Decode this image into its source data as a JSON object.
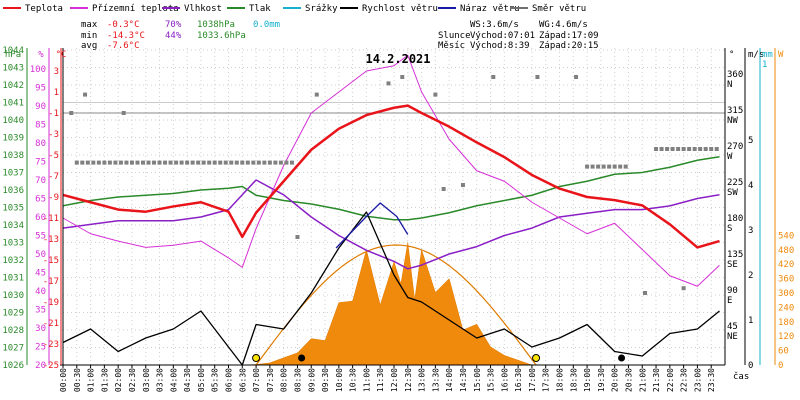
{
  "chart_data": {
    "type": "line",
    "title": "14.2.2021",
    "xlabel": "čas",
    "legend": [
      {
        "name": "Teplota",
        "color": "#e8141a"
      },
      {
        "name": "Přízemní teplota",
        "color": "#d62fd6"
      },
      {
        "name": "Vlhkost",
        "color": "#8a1fc6"
      },
      {
        "name": "Tlak",
        "color": "#2a8a2a"
      },
      {
        "name": "Srážky",
        "color": "#16b0cc"
      },
      {
        "name": "Rychlost větru",
        "color": "#000000"
      },
      {
        "name": "Náraz větru",
        "color": "#1a1aa6"
      },
      {
        "name": "Směr větru",
        "color": "#707070"
      }
    ],
    "stats": {
      "max_label": "max",
      "max_temp": "-0.3°C",
      "max_hum": "70%",
      "max_press": "1038hPa",
      "rain": "0.0mm",
      "min_label": "min",
      "min_temp": "-14.3°C",
      "min_hum": "44%",
      "min_press": "1033.6hPa",
      "avg_label": "avg",
      "avg_temp": "-7.6°C"
    },
    "wind_info": {
      "ws": "WS:3.6m/s",
      "wg": "WG:4.6m/s"
    },
    "sun": {
      "label": "Slunce",
      "rise": "Východ:07:01",
      "set": "Západ:17:09"
    },
    "moon": {
      "label": "Měsíc",
      "rise": "Východ:8:39",
      "set": "Západ:20:15"
    },
    "axes": {
      "hpa_title": "hPa",
      "pct_title": "%",
      "c_title": "°C",
      "deg_title": "°",
      "ms_title": "m/s",
      "mm_title": "mm",
      "w_title": "W",
      "ms_one": "1",
      "hpa_ticks": [
        "1044",
        "1043",
        "1042",
        "1041",
        "1040",
        "1039",
        "1038",
        "1037",
        "1036",
        "1035",
        "1034",
        "1033",
        "1032",
        "1031",
        "1030",
        "1029",
        "1028",
        "1027",
        "1026"
      ],
      "pct_ticks": [
        "100",
        "95",
        "90",
        "85",
        "80",
        "75",
        "70",
        "65",
        "60",
        "55",
        "50",
        "45",
        "40",
        "35",
        "30",
        "25",
        "20"
      ],
      "c_ticks": [
        "3",
        "1",
        "-1",
        "-3",
        "-5",
        "-7",
        "-9",
        "-11",
        "-13",
        "-15",
        "-17",
        "-19",
        "-21",
        "-23",
        "-25"
      ],
      "deg_ticks": [
        {
          "deg": "360",
          "dir": "N"
        },
        {
          "deg": "315",
          "dir": "NW"
        },
        {
          "deg": "270",
          "dir": "W"
        },
        {
          "deg": "225",
          "dir": "SW"
        },
        {
          "deg": "180",
          "dir": "S"
        },
        {
          "deg": "135",
          "dir": "SE"
        },
        {
          "deg": "90",
          "dir": "E"
        },
        {
          "deg": "45",
          "dir": "NE"
        }
      ],
      "ms_ticks": [
        "5",
        "4",
        "3",
        "2",
        "1",
        "0"
      ],
      "w_ticks": [
        "540",
        "480",
        "420",
        "360",
        "300",
        "240",
        "180",
        "120",
        "60",
        "0"
      ],
      "x_ticks": [
        "00:00",
        "00:30",
        "01:00",
        "01:30",
        "02:00",
        "02:30",
        "03:00",
        "03:30",
        "04:00",
        "04:30",
        "05:00",
        "05:30",
        "06:00",
        "06:30",
        "07:00",
        "07:30",
        "08:00",
        "08:30",
        "09:00",
        "09:30",
        "10:00",
        "10:30",
        "11:00",
        "11:30",
        "12:00",
        "12:30",
        "13:00",
        "13:30",
        "14:00",
        "14:30",
        "15:00",
        "15:30",
        "16:00",
        "16:30",
        "17:00",
        "17:30",
        "18:00",
        "18:30",
        "19:00",
        "19:30",
        "20:00",
        "20:30",
        "21:00",
        "21:30",
        "22:00",
        "22:30",
        "23:00",
        "23:30"
      ]
    },
    "series": {
      "hours": [
        0,
        1,
        2,
        3,
        4,
        5,
        6,
        6.5,
        7,
        8,
        9,
        10,
        11,
        12,
        12.5,
        13,
        14,
        15,
        16,
        17,
        18,
        19,
        20,
        21,
        22,
        23,
        23.8
      ],
      "temperature": [
        -8.8,
        -9.5,
        -10.2,
        -10.4,
        -9.9,
        -9.5,
        -10.4,
        -12.8,
        -10.5,
        -7.5,
        -4.5,
        -2.5,
        -1.2,
        -0.5,
        -0.3,
        -1.0,
        -2.3,
        -3.8,
        -5.2,
        -6.9,
        -8.2,
        -9.0,
        -9.3,
        -9.8,
        -11.6,
        -13.8,
        -13.2
      ],
      "ground_temperature": [
        -11,
        -12.5,
        -13.2,
        -13.8,
        -13.6,
        -13.2,
        -14.8,
        -15.7,
        -12,
        -6,
        -1,
        1,
        3,
        3.5,
        4.5,
        1,
        -3.5,
        -6.5,
        -7.5,
        -9.5,
        -11,
        -12.5,
        -11.5,
        -14,
        -16.5,
        -17.5,
        -15.5
      ],
      "humidity": [
        57,
        58,
        59,
        59,
        59,
        60,
        62,
        66,
        70,
        66,
        60,
        55,
        51,
        48,
        46,
        47,
        50,
        52,
        55,
        57,
        60,
        61,
        62,
        62,
        63,
        65,
        66
      ],
      "pressure": [
        1035.1,
        1035.4,
        1035.6,
        1035.7,
        1035.8,
        1036.0,
        1036.1,
        1036.2,
        1035.7,
        1035.4,
        1035.2,
        1034.9,
        1034.5,
        1034.3,
        1034.3,
        1034.4,
        1034.7,
        1035.1,
        1035.4,
        1035.7,
        1036.2,
        1036.5,
        1036.9,
        1037.0,
        1037.3,
        1037.7,
        1037.9
      ],
      "wind_speed": [
        0.5,
        0.8,
        0.3,
        0.6,
        0.8,
        1.2,
        0.4,
        0,
        0.9,
        0.8,
        1.6,
        2.6,
        3.4,
        2.0,
        1.5,
        1.4,
        1.0,
        0.6,
        0.8,
        0.4,
        0.6,
        0.9,
        0.3,
        0.2,
        0.7,
        0.8,
        1.2
      ],
      "wind_gust_hours": [
        9.9,
        11.0,
        11.5,
        12.1,
        12.5
      ],
      "wind_gust": [
        2.6,
        3.3,
        3.6,
        3.3,
        2.9
      ],
      "solar_radiation": [
        0,
        0,
        0,
        0,
        0,
        0,
        0,
        0,
        2,
        30,
        110,
        260,
        480,
        430,
        510,
        480,
        360,
        170,
        40,
        0,
        0,
        0,
        0,
        0,
        0,
        0,
        0
      ],
      "solar_theoretical_peak": 500,
      "wind_direction_top": [
        {
          "h": 0.3,
          "d": 315
        },
        {
          "h": 0.8,
          "d": 338
        },
        {
          "h": 2.2,
          "d": 315
        },
        {
          "h": 9.2,
          "d": 338
        },
        {
          "h": 11.8,
          "d": 352
        },
        {
          "h": 12.3,
          "d": 360
        },
        {
          "h": 13.5,
          "d": 338
        },
        {
          "h": 15.6,
          "d": 360
        },
        {
          "h": 17.2,
          "d": 360
        },
        {
          "h": 18.6,
          "d": 360
        }
      ],
      "wind_direction_mid": [
        {
          "h0": 0.5,
          "h1": 8.3,
          "d": 253
        },
        {
          "h0": 19.0,
          "h1": 20.5,
          "d": 248
        },
        {
          "h0": 21.5,
          "h1": 23.8,
          "d": 270
        }
      ],
      "wind_direction_low": [
        {
          "h": 8.5,
          "d": 160
        },
        {
          "h": 13.8,
          "d": 220
        },
        {
          "h": 14.5,
          "d": 225
        },
        {
          "h": 21.1,
          "d": 90
        },
        {
          "h": 22.5,
          "d": 96
        }
      ],
      "sun_events": [
        {
          "h": 7.0,
          "kind": "sunrise"
        },
        {
          "h": 17.15,
          "kind": "sunset"
        }
      ],
      "moon_events": [
        {
          "h": 8.65,
          "kind": "moonrise"
        },
        {
          "h": 20.25,
          "kind": "moonset"
        }
      ]
    }
  }
}
